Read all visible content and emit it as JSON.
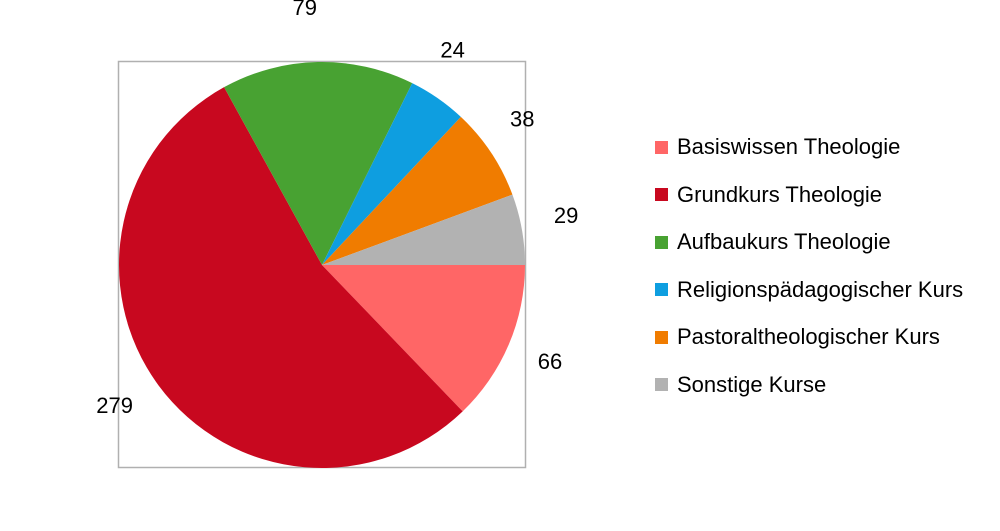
{
  "chart_data": {
    "type": "pie",
    "categories": [
      "Basiswissen Theologie",
      "Grundkurs Theologie",
      "Aufbaukurs Theologie",
      "Religionspädagogischer Kurs",
      "Pastoraltheologischer Kurs",
      "Sonstige Kurse"
    ],
    "values": [
      66,
      279,
      79,
      24,
      38,
      29
    ],
    "colors": [
      "#ff6666",
      "#c8081f",
      "#48a232",
      "#0e9ee0",
      "#f07c00",
      "#b2b2b2"
    ],
    "data_labels": [
      "66",
      "279",
      "79",
      "24",
      "38",
      "29"
    ],
    "start_angle_deg": 0,
    "direction": "clockwise",
    "legend_position": "right",
    "plot_area_border": true
  }
}
